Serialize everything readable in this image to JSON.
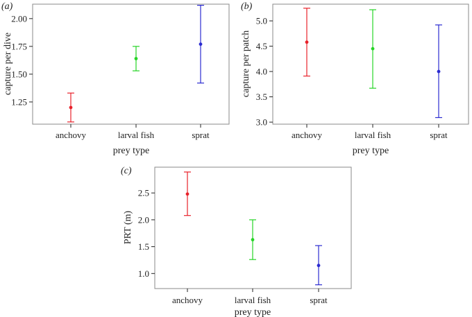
{
  "chart_data": [
    {
      "type": "errorbar",
      "panel_label": "(a)",
      "categories": [
        "anchovy",
        "larval fish",
        "sprat"
      ],
      "xlabel": "prey type",
      "ylabel": "capture per dive",
      "ylim": [
        1.05,
        2.13
      ],
      "yticks": [
        1.25,
        1.5,
        1.75,
        2.0
      ],
      "ytick_labels": [
        "1.25",
        "1.50",
        "1.75",
        "2.00"
      ],
      "means": [
        1.2,
        1.64,
        1.77
      ],
      "lower": [
        1.07,
        1.53,
        1.42
      ],
      "upper": [
        1.33,
        1.75,
        2.12
      ],
      "colors": [
        "#e8212a",
        "#26d426",
        "#2b2bd0"
      ]
    },
    {
      "type": "errorbar",
      "panel_label": "(b)",
      "categories": [
        "anchovy",
        "larval fish",
        "sprat"
      ],
      "xlabel": "prey type",
      "ylabel": "capture per patch",
      "ylim": [
        2.96,
        5.33
      ],
      "yticks": [
        3.0,
        3.5,
        4.0,
        4.5,
        5.0
      ],
      "ytick_labels": [
        "3.0",
        "3.5",
        "4.0",
        "4.5",
        "5.0"
      ],
      "means": [
        4.58,
        4.45,
        4.0
      ],
      "lower": [
        3.91,
        3.67,
        3.09
      ],
      "upper": [
        5.25,
        5.22,
        4.92
      ],
      "colors": [
        "#e8212a",
        "#26d426",
        "#2b2bd0"
      ]
    },
    {
      "type": "errorbar",
      "panel_label": "(c)",
      "categories": [
        "anchovy",
        "larval fish",
        "sprat"
      ],
      "xlabel": "prey type",
      "ylabel": "PRT (m)",
      "ylim": [
        0.72,
        2.98
      ],
      "yticks": [
        1.0,
        1.5,
        2.0,
        2.5
      ],
      "ytick_labels": [
        "1.0",
        "1.5",
        "2.0",
        "2.5"
      ],
      "means": [
        2.48,
        1.63,
        1.15
      ],
      "lower": [
        2.08,
        1.26,
        0.79
      ],
      "upper": [
        2.89,
        2.0,
        1.52
      ],
      "colors": [
        "#e8212a",
        "#26d426",
        "#2b2bd0"
      ]
    }
  ]
}
